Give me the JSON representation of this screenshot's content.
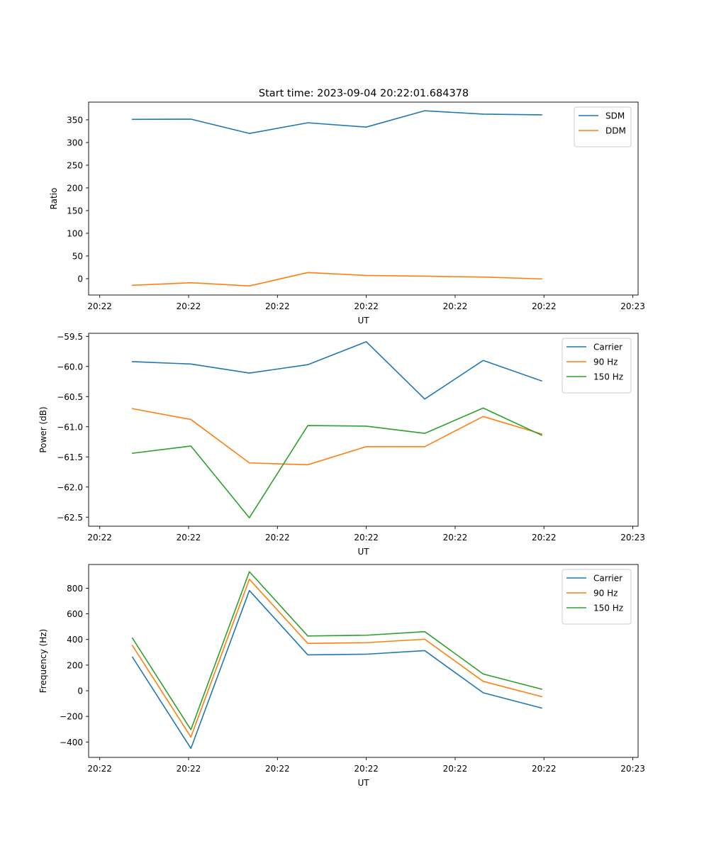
{
  "title": "Start time: 2023-09-04 20:22:01.684378",
  "colors": {
    "blue": "#1f77b4",
    "orange": "#ff7f0e",
    "green": "#2ca02c"
  },
  "chart_data": [
    {
      "type": "line",
      "title": "Start time: 2023-09-04 20:22:01.684378",
      "xlabel": "UT",
      "ylabel": "Ratio",
      "x": [
        0,
        1,
        2,
        3,
        4,
        5,
        6,
        7
      ],
      "xlim": [
        -0.75,
        8.65
      ],
      "xticks": [
        -0.56,
        0.96,
        2.48,
        4.0,
        5.52,
        7.04,
        8.56
      ],
      "xtick_labels": [
        "20:22",
        "20:22",
        "20:22",
        "20:22",
        "20:22",
        "20:22",
        "20:23"
      ],
      "ylim": [
        -36,
        389
      ],
      "yticks": [
        0,
        50,
        100,
        150,
        200,
        250,
        300,
        350
      ],
      "ytick_labels": [
        "0",
        "50",
        "100",
        "150",
        "200",
        "250",
        "300",
        "350"
      ],
      "legend_position": "top-right",
      "series": [
        {
          "name": "SDM",
          "color": "#1f77b4",
          "values": [
            351,
            351.5,
            320,
            343.5,
            334,
            370,
            362.5,
            361
          ]
        },
        {
          "name": "DDM",
          "color": "#ff7f0e",
          "values": [
            -14.5,
            -9,
            -16,
            13.5,
            7,
            5.5,
            3.5,
            -0.5
          ]
        }
      ]
    },
    {
      "type": "line",
      "xlabel": "UT",
      "ylabel": "Power (dB)",
      "x": [
        0,
        1,
        2,
        3,
        4,
        5,
        6,
        7
      ],
      "xlim": [
        -0.75,
        8.65
      ],
      "xticks": [
        -0.56,
        0.96,
        2.48,
        4.0,
        5.52,
        7.04,
        8.56
      ],
      "xtick_labels": [
        "20:22",
        "20:22",
        "20:22",
        "20:22",
        "20:22",
        "20:22",
        "20:23"
      ],
      "ylim": [
        -62.65,
        -59.45
      ],
      "yticks": [
        -62.5,
        -62.0,
        -61.5,
        -61.0,
        -60.5,
        -60.0,
        -59.5
      ],
      "ytick_labels": [
        "−62.5",
        "−62.0",
        "−61.5",
        "−61.0",
        "−60.5",
        "−60.0",
        "−59.5"
      ],
      "legend_position": "top-right",
      "series": [
        {
          "name": "Carrier",
          "color": "#1f77b4",
          "values": [
            -59.92,
            -59.96,
            -60.11,
            -59.97,
            -59.59,
            -60.54,
            -59.9,
            -60.24
          ]
        },
        {
          "name": "90 Hz",
          "color": "#ff7f0e",
          "values": [
            -60.7,
            -60.88,
            -61.6,
            -61.63,
            -61.33,
            -61.33,
            -60.83,
            -61.12
          ]
        },
        {
          "name": "150 Hz",
          "color": "#2ca02c",
          "values": [
            -61.44,
            -61.32,
            -62.51,
            -60.98,
            -60.99,
            -61.11,
            -60.69,
            -61.14
          ]
        }
      ]
    },
    {
      "type": "line",
      "xlabel": "UT",
      "ylabel": "Frequency (Hz)",
      "x": [
        0,
        1,
        2,
        3,
        4,
        5,
        6,
        7
      ],
      "xlim": [
        -0.75,
        8.65
      ],
      "xticks": [
        -0.56,
        0.96,
        2.48,
        4.0,
        5.52,
        7.04,
        8.56
      ],
      "xtick_labels": [
        "20:22",
        "20:22",
        "20:22",
        "20:22",
        "20:22",
        "20:22",
        "20:23"
      ],
      "ylim": [
        -520,
        985
      ],
      "yticks": [
        -400,
        -200,
        0,
        200,
        400,
        600,
        800
      ],
      "ytick_labels": [
        "−400",
        "−200",
        "0",
        "200",
        "400",
        "600",
        "800"
      ],
      "legend_position": "top-right",
      "series": [
        {
          "name": "Carrier",
          "color": "#1f77b4",
          "values": [
            262,
            -450,
            782,
            280,
            285,
            313,
            -16,
            -135
          ]
        },
        {
          "name": "90 Hz",
          "color": "#ff7f0e",
          "values": [
            352,
            -361,
            870,
            369,
            375,
            402,
            73,
            -46
          ]
        },
        {
          "name": "150 Hz",
          "color": "#2ca02c",
          "values": [
            410,
            -304,
            929,
            427,
            433,
            461,
            131,
            12
          ]
        }
      ]
    }
  ]
}
